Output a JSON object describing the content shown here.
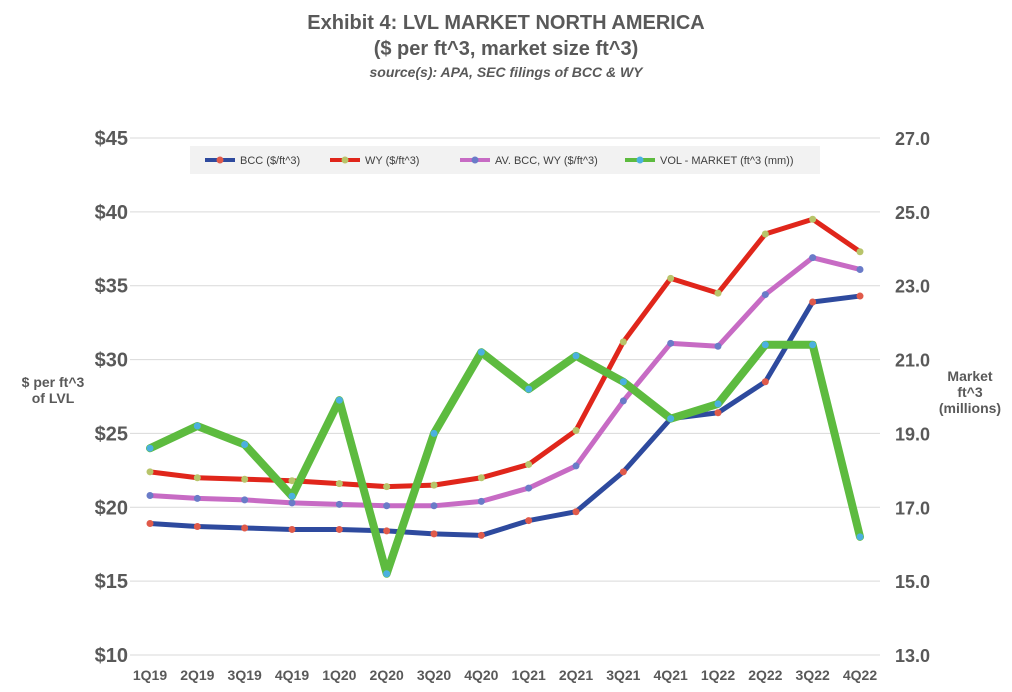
{
  "title": {
    "line1": "Exhibit 4: LVL MARKET NORTH AMERICA",
    "line2": "($ per ft^3, market size ft^3)",
    "line3": "source(s): APA, SEC filings of BCC & WY"
  },
  "y_left_label": {
    "line1": "$ per ft^3",
    "line2": "of LVL"
  },
  "y_right_label": {
    "line1": "Market",
    "line2": "ft^3",
    "line3": "(millions)"
  },
  "colors": {
    "bcc": "#2E4A9E",
    "wy": "#E0261B",
    "avg": "#C76BC4",
    "vol": "#5DBB3F",
    "grid": "#D9D9D9",
    "axis_text": "#595959"
  },
  "chart_data": {
    "type": "line",
    "title": "Exhibit 4: LVL MARKET NORTH AMERICA",
    "subtitle": "($ per ft^3, market size ft^3)",
    "categories": [
      "1Q19",
      "2Q19",
      "3Q19",
      "4Q19",
      "1Q20",
      "2Q20",
      "3Q20",
      "4Q20",
      "1Q21",
      "2Q21",
      "3Q21",
      "4Q21",
      "1Q22",
      "2Q22",
      "3Q22",
      "4Q22"
    ],
    "y_left": {
      "label": "$ per ft^3 of LVL",
      "min": 10,
      "max": 45,
      "step": 5,
      "tick_labels": [
        "$10",
        "$15",
        "$20",
        "$25",
        "$30",
        "$35",
        "$40",
        "$45"
      ]
    },
    "y_right": {
      "label": "Market ft^3 (millions)",
      "min": 13.0,
      "max": 27.0,
      "step": 2.0,
      "tick_labels": [
        "13.0",
        "15.0",
        "17.0",
        "19.0",
        "21.0",
        "23.0",
        "25.0",
        "27.0"
      ]
    },
    "legend_position": "top",
    "series": [
      {
        "name": "BCC ($/ft^3)",
        "axis": "left",
        "color_key": "bcc",
        "values": [
          18.9,
          18.7,
          18.6,
          18.5,
          18.5,
          18.4,
          18.2,
          18.1,
          19.1,
          19.7,
          22.4,
          26.0,
          26.4,
          28.5,
          33.9,
          34.3
        ]
      },
      {
        "name": "WY ($/ft^3)",
        "axis": "left",
        "color_key": "wy",
        "values": [
          22.4,
          22.0,
          21.9,
          21.8,
          21.6,
          21.4,
          21.5,
          22.0,
          22.9,
          25.2,
          31.2,
          35.5,
          34.5,
          38.5,
          39.5,
          37.3
        ]
      },
      {
        "name": "AV. BCC, WY ($/ft^3)",
        "axis": "left",
        "color_key": "avg",
        "values": [
          20.8,
          20.6,
          20.5,
          20.3,
          20.2,
          20.1,
          20.1,
          20.4,
          21.3,
          22.8,
          27.2,
          31.1,
          30.9,
          34.4,
          36.9,
          36.1
        ]
      },
      {
        "name": "VOL - MARKET (ft^3 (mm))",
        "axis": "right",
        "color_key": "vol",
        "values": [
          18.6,
          19.2,
          18.7,
          17.3,
          19.9,
          15.2,
          19.0,
          21.2,
          20.2,
          21.1,
          20.4,
          19.4,
          19.8,
          21.4,
          21.4,
          16.2
        ]
      }
    ]
  }
}
